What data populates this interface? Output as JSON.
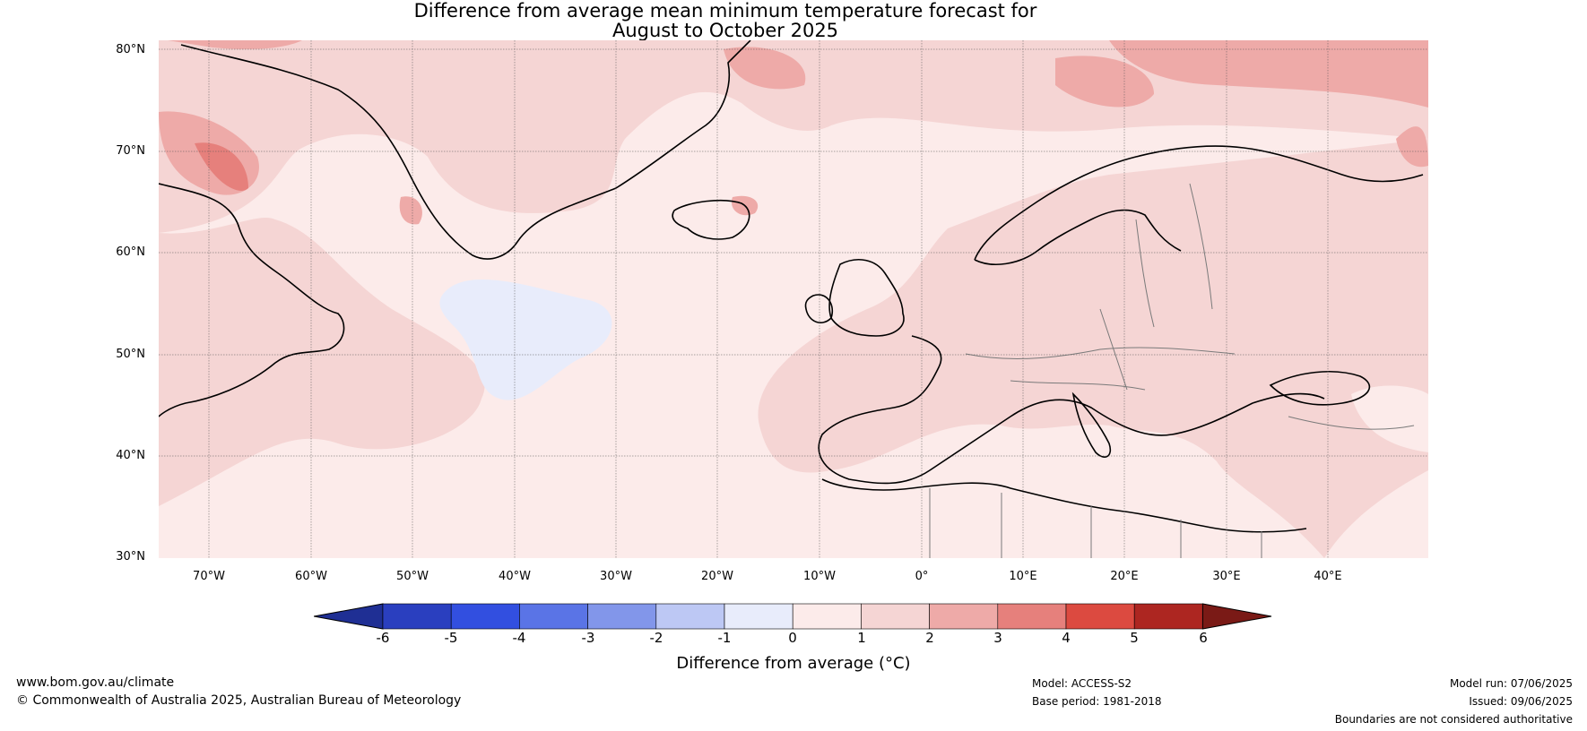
{
  "title": {
    "line1": "Difference from average mean minimum temperature forecast for",
    "line2": "August to October 2025"
  },
  "latitude_labels": [
    "80°N",
    "70°N",
    "60°N",
    "50°N",
    "40°N",
    "30°N"
  ],
  "longitude_labels": [
    "70°W",
    "60°W",
    "50°W",
    "40°W",
    "30°W",
    "20°W",
    "10°W",
    "0°",
    "10°E",
    "20°E",
    "30°E",
    "40°E"
  ],
  "colorbar": {
    "ticks": [
      "-6",
      "-5",
      "-4",
      "-3",
      "-2",
      "-1",
      "0",
      "1",
      "2",
      "3",
      "4",
      "5",
      "6"
    ],
    "colors": [
      "#1f2f94",
      "#2a3fbf",
      "#324fe0",
      "#5a74e6",
      "#8296ea",
      "#bdc8f4",
      "#e8ecfb",
      "#fcebea",
      "#f5d5d4",
      "#eeaaa8",
      "#e6807c",
      "#dc4a40",
      "#ad2621",
      "#7a1a16"
    ],
    "label": "Difference from average (°C)"
  },
  "footer": {
    "website": "www.bom.gov.au/climate",
    "copyright": "© Commonwealth of Australia 2025, Australian Bureau of Meteorology",
    "model": "Model: ACCESS-S2",
    "base_period": "Base period: 1981-2018",
    "model_run": "Model run: 07/06/2025",
    "issued": "Issued: 09/06/2025",
    "disclaimer": "Boundaries are not considered authoritative"
  }
}
